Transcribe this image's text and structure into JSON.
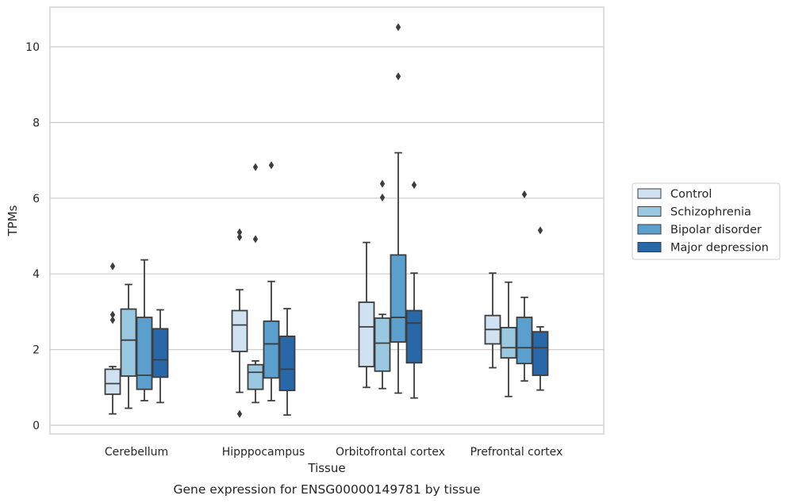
{
  "chart_data": {
    "type": "box",
    "title": "",
    "xlabel": "Tissue",
    "ylabel": "TPMs",
    "caption": "Gene expression for ENSG00000149781 by tissue",
    "ylim": [
      -0.25,
      11
    ],
    "yticks": [
      0,
      2,
      4,
      6,
      8,
      10
    ],
    "grid": "horizontal",
    "legend_position": "right",
    "categories": [
      "Cerebellum",
      "Hipppocampus",
      "Orbitofrontal cortex",
      "Prefrontal cortex"
    ],
    "series": [
      {
        "name": "Control",
        "color": "#d0e1f2",
        "boxes": [
          {
            "whislo": 0.3,
            "q1": 0.82,
            "med": 1.1,
            "q3": 1.48,
            "whishi": 1.55,
            "fliers": [
              2.78,
              2.92,
              4.2
            ]
          },
          {
            "whislo": 0.87,
            "q1": 1.95,
            "med": 2.65,
            "q3": 3.03,
            "whishi": 3.58,
            "fliers": [
              0.3,
              4.97,
              5.1
            ]
          },
          {
            "whislo": 1.0,
            "q1": 1.55,
            "med": 2.6,
            "q3": 3.25,
            "whishi": 4.83,
            "fliers": []
          },
          {
            "whislo": 1.52,
            "q1": 2.15,
            "med": 2.53,
            "q3": 2.9,
            "whishi": 4.02,
            "fliers": []
          }
        ]
      },
      {
        "name": "Schizophrenia",
        "color": "#9ac8e0",
        "boxes": [
          {
            "whislo": 0.45,
            "q1": 1.3,
            "med": 2.25,
            "q3": 3.07,
            "whishi": 3.72,
            "fliers": []
          },
          {
            "whislo": 0.6,
            "q1": 0.95,
            "med": 1.4,
            "q3": 1.6,
            "whishi": 1.7,
            "fliers": [
              4.92,
              6.82
            ]
          },
          {
            "whislo": 0.97,
            "q1": 1.43,
            "med": 2.17,
            "q3": 2.83,
            "whishi": 2.93,
            "fliers": [
              6.02,
              6.38
            ]
          },
          {
            "whislo": 0.76,
            "q1": 1.78,
            "med": 2.05,
            "q3": 2.58,
            "whishi": 3.78,
            "fliers": []
          }
        ]
      },
      {
        "name": "Bipolar disorder",
        "color": "#5a9fcd",
        "boxes": [
          {
            "whislo": 0.65,
            "q1": 0.95,
            "med": 1.32,
            "q3": 2.85,
            "whishi": 4.37,
            "fliers": []
          },
          {
            "whislo": 0.65,
            "q1": 1.25,
            "med": 2.15,
            "q3": 2.75,
            "whishi": 3.8,
            "fliers": [
              6.87
            ]
          },
          {
            "whislo": 0.85,
            "q1": 2.2,
            "med": 2.85,
            "q3": 4.5,
            "whishi": 7.2,
            "fliers": [
              9.22,
              10.52
            ]
          },
          {
            "whislo": 1.17,
            "q1": 1.63,
            "med": 2.05,
            "q3": 2.85,
            "whishi": 3.38,
            "fliers": [
              6.1
            ]
          }
        ]
      },
      {
        "name": "Major depression",
        "color": "#2868a8",
        "boxes": [
          {
            "whislo": 0.6,
            "q1": 1.27,
            "med": 1.73,
            "q3": 2.55,
            "whishi": 3.05,
            "fliers": []
          },
          {
            "whislo": 0.27,
            "q1": 0.92,
            "med": 1.48,
            "q3": 2.35,
            "whishi": 3.08,
            "fliers": []
          },
          {
            "whislo": 0.72,
            "q1": 1.65,
            "med": 2.7,
            "q3": 3.03,
            "whishi": 4.02,
            "fliers": [
              6.35
            ]
          },
          {
            "whislo": 0.93,
            "q1": 1.32,
            "med": 2.05,
            "q3": 2.47,
            "whishi": 2.6,
            "fliers": [
              5.15
            ]
          }
        ]
      }
    ]
  }
}
